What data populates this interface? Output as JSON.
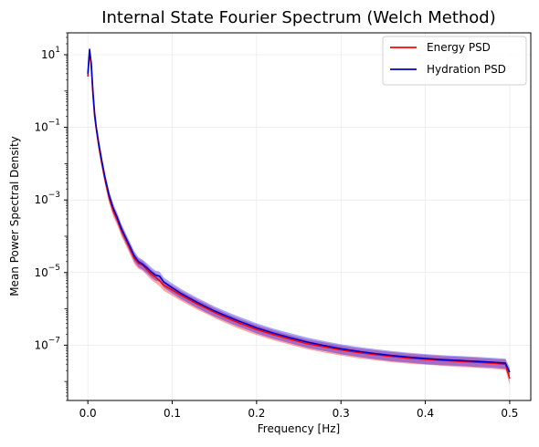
{
  "chart_data": {
    "type": "line",
    "title": "Internal State Fourier Spectrum (Welch Method)",
    "xlabel": "Frequency [Hz]",
    "ylabel": "Mean Power Spectral Density",
    "xlim": [
      -0.024,
      0.525
    ],
    "ylim": [
      3e-09,
      40
    ],
    "yscale": "log",
    "grid": true,
    "legend_position": "top-right",
    "x_ticks": [
      {
        "value": 0.0,
        "label": "0.0"
      },
      {
        "value": 0.1,
        "label": "0.1"
      },
      {
        "value": 0.2,
        "label": "0.2"
      },
      {
        "value": 0.3,
        "label": "0.3"
      },
      {
        "value": 0.4,
        "label": "0.4"
      },
      {
        "value": 0.5,
        "label": "0.5"
      }
    ],
    "y_ticks": [
      {
        "value": 10,
        "base": "10",
        "exp": "1"
      },
      {
        "value": 0.1,
        "base": "10",
        "exp": "−1"
      },
      {
        "value": 0.001,
        "base": "10",
        "exp": "−3"
      },
      {
        "value": 1e-05,
        "base": "10",
        "exp": "−5"
      },
      {
        "value": 1e-07,
        "base": "10",
        "exp": "−7"
      }
    ],
    "x": [
      0.0,
      0.002,
      0.004,
      0.006,
      0.008,
      0.01,
      0.013,
      0.016,
      0.02,
      0.025,
      0.03,
      0.035,
      0.04,
      0.045,
      0.05,
      0.055,
      0.06,
      0.065,
      0.07,
      0.075,
      0.08,
      0.085,
      0.09,
      0.1,
      0.11,
      0.12,
      0.13,
      0.14,
      0.15,
      0.16,
      0.17,
      0.18,
      0.19,
      0.2,
      0.22,
      0.24,
      0.26,
      0.28,
      0.3,
      0.32,
      0.34,
      0.36,
      0.38,
      0.4,
      0.42,
      0.44,
      0.46,
      0.48,
      0.495,
      0.5
    ],
    "series": [
      {
        "name": "Energy PSD",
        "color": "#ff0000",
        "band_color": "#ff0000",
        "values": [
          2.5,
          12.0,
          5.0,
          0.8,
          0.2,
          0.09,
          0.03,
          0.012,
          0.004,
          0.0012,
          0.0005,
          0.00028,
          0.00014,
          8e-05,
          4.5e-05,
          2.5e-05,
          1.8e-05,
          1.6e-05,
          1.2e-05,
          9e-06,
          7.5e-06,
          6e-06,
          4.5e-06,
          3.3e-06,
          2.4e-06,
          1.8e-06,
          1.35e-06,
          1.05e-06,
          8e-07,
          6.3e-07,
          5e-07,
          4e-07,
          3.3e-07,
          2.7e-07,
          1.95e-07,
          1.45e-07,
          1.1e-07,
          9e-08,
          7.4e-08,
          6.3e-08,
          5.5e-08,
          4.9e-08,
          4.4e-08,
          4.1e-08,
          3.8e-08,
          3.6e-08,
          3.4e-08,
          3.2e-08,
          3e-08,
          1.2e-08
        ],
        "lower": [
          1.8,
          9.0,
          3.6,
          0.55,
          0.14,
          0.063,
          0.021,
          0.0084,
          0.0028,
          0.00084,
          0.00035,
          0.000196,
          9.8e-05,
          5.6e-05,
          3.15e-05,
          1.75e-05,
          1.26e-05,
          1.12e-05,
          8.4e-06,
          6.3e-06,
          5.25e-06,
          4.2e-06,
          3.15e-06,
          2.31e-06,
          1.68e-06,
          1.26e-06,
          9.5e-07,
          7.35e-07,
          5.6e-07,
          4.4e-07,
          3.5e-07,
          2.8e-07,
          2.3e-07,
          1.9e-07,
          1.37e-07,
          1.02e-07,
          7.7e-08,
          6.3e-08,
          5.2e-08,
          4.4e-08,
          3.85e-08,
          3.4e-08,
          3.1e-08,
          2.9e-08,
          2.7e-08,
          2.5e-08,
          2.4e-08,
          2.2e-08,
          2.1e-08,
          8e-09
        ],
        "upper": [
          3.2,
          15.0,
          6.5,
          1.1,
          0.27,
          0.12,
          0.04,
          0.016,
          0.0053,
          0.0016,
          0.00066,
          0.00037,
          0.000185,
          0.000106,
          5.9e-05,
          3.3e-05,
          2.4e-05,
          2.1e-05,
          1.6e-05,
          1.2e-05,
          9.9e-06,
          7.9e-06,
          5.9e-06,
          4.4e-06,
          3.2e-06,
          2.4e-06,
          1.8e-06,
          1.4e-06,
          1.06e-06,
          8.3e-07,
          6.6e-07,
          5.3e-07,
          4.4e-07,
          3.6e-07,
          2.6e-07,
          1.9e-07,
          1.45e-07,
          1.2e-07,
          9.8e-08,
          8.3e-08,
          7.3e-08,
          6.5e-08,
          5.8e-08,
          5.4e-08,
          5e-08,
          4.8e-08,
          4.5e-08,
          4.2e-08,
          4e-08,
          1.6e-08
        ]
      },
      {
        "name": "Hydration PSD",
        "color": "#0000cd",
        "band_color": "#0000ff",
        "values": [
          3.0,
          14.0,
          6.0,
          1.0,
          0.25,
          0.1,
          0.035,
          0.014,
          0.0045,
          0.0014,
          0.0006,
          0.00032,
          0.00016,
          9e-05,
          5.2e-05,
          2.9e-05,
          2e-05,
          1.7e-05,
          1.35e-05,
          1.05e-05,
          8.5e-06,
          8e-06,
          5.5e-06,
          3.8e-06,
          2.7e-06,
          2e-06,
          1.5e-06,
          1.15e-06,
          8.8e-07,
          7e-07,
          5.6e-07,
          4.5e-07,
          3.7e-07,
          3e-07,
          2.15e-07,
          1.6e-07,
          1.22e-07,
          9.8e-08,
          8e-08,
          6.8e-08,
          5.9e-08,
          5.2e-08,
          4.7e-08,
          4.3e-08,
          4e-08,
          3.8e-08,
          3.6e-08,
          3.4e-08,
          3.2e-08,
          1.8e-08
        ],
        "lower": [
          2.2,
          10.5,
          4.4,
          0.7,
          0.18,
          0.07,
          0.0245,
          0.0098,
          0.0032,
          0.00098,
          0.00042,
          0.000224,
          0.000112,
          6.3e-05,
          3.6e-05,
          2e-05,
          1.4e-05,
          1.19e-05,
          9.5e-06,
          7.35e-06,
          6e-06,
          5.6e-06,
          3.85e-06,
          2.66e-06,
          1.9e-06,
          1.4e-06,
          1.05e-06,
          8e-07,
          6.2e-07,
          4.9e-07,
          3.9e-07,
          3.15e-07,
          2.6e-07,
          2.1e-07,
          1.5e-07,
          1.12e-07,
          8.5e-08,
          6.9e-08,
          5.6e-08,
          4.8e-08,
          4.1e-08,
          3.6e-08,
          3.3e-08,
          3e-08,
          2.8e-08,
          2.7e-08,
          2.5e-08,
          2.4e-08,
          2.2e-08,
          1.2e-08
        ],
        "upper": [
          3.8,
          17.5,
          7.6,
          1.35,
          0.33,
          0.13,
          0.046,
          0.0186,
          0.006,
          0.00186,
          0.0008,
          0.000426,
          0.000213,
          0.00012,
          6.9e-05,
          3.9e-05,
          2.66e-05,
          2.26e-05,
          1.8e-05,
          1.4e-05,
          1.13e-05,
          1.06e-05,
          7.3e-06,
          5.05e-06,
          3.6e-06,
          2.66e-06,
          2e-06,
          1.53e-06,
          1.17e-06,
          9.3e-07,
          7.4e-07,
          6e-07,
          4.9e-07,
          4e-07,
          2.86e-07,
          2.13e-07,
          1.62e-07,
          1.3e-07,
          1.06e-07,
          9e-08,
          7.8e-08,
          6.9e-08,
          6.2e-08,
          5.7e-08,
          5.3e-08,
          5.05e-08,
          4.8e-08,
          4.5e-08,
          4.25e-08,
          2.4e-08
        ]
      }
    ]
  }
}
